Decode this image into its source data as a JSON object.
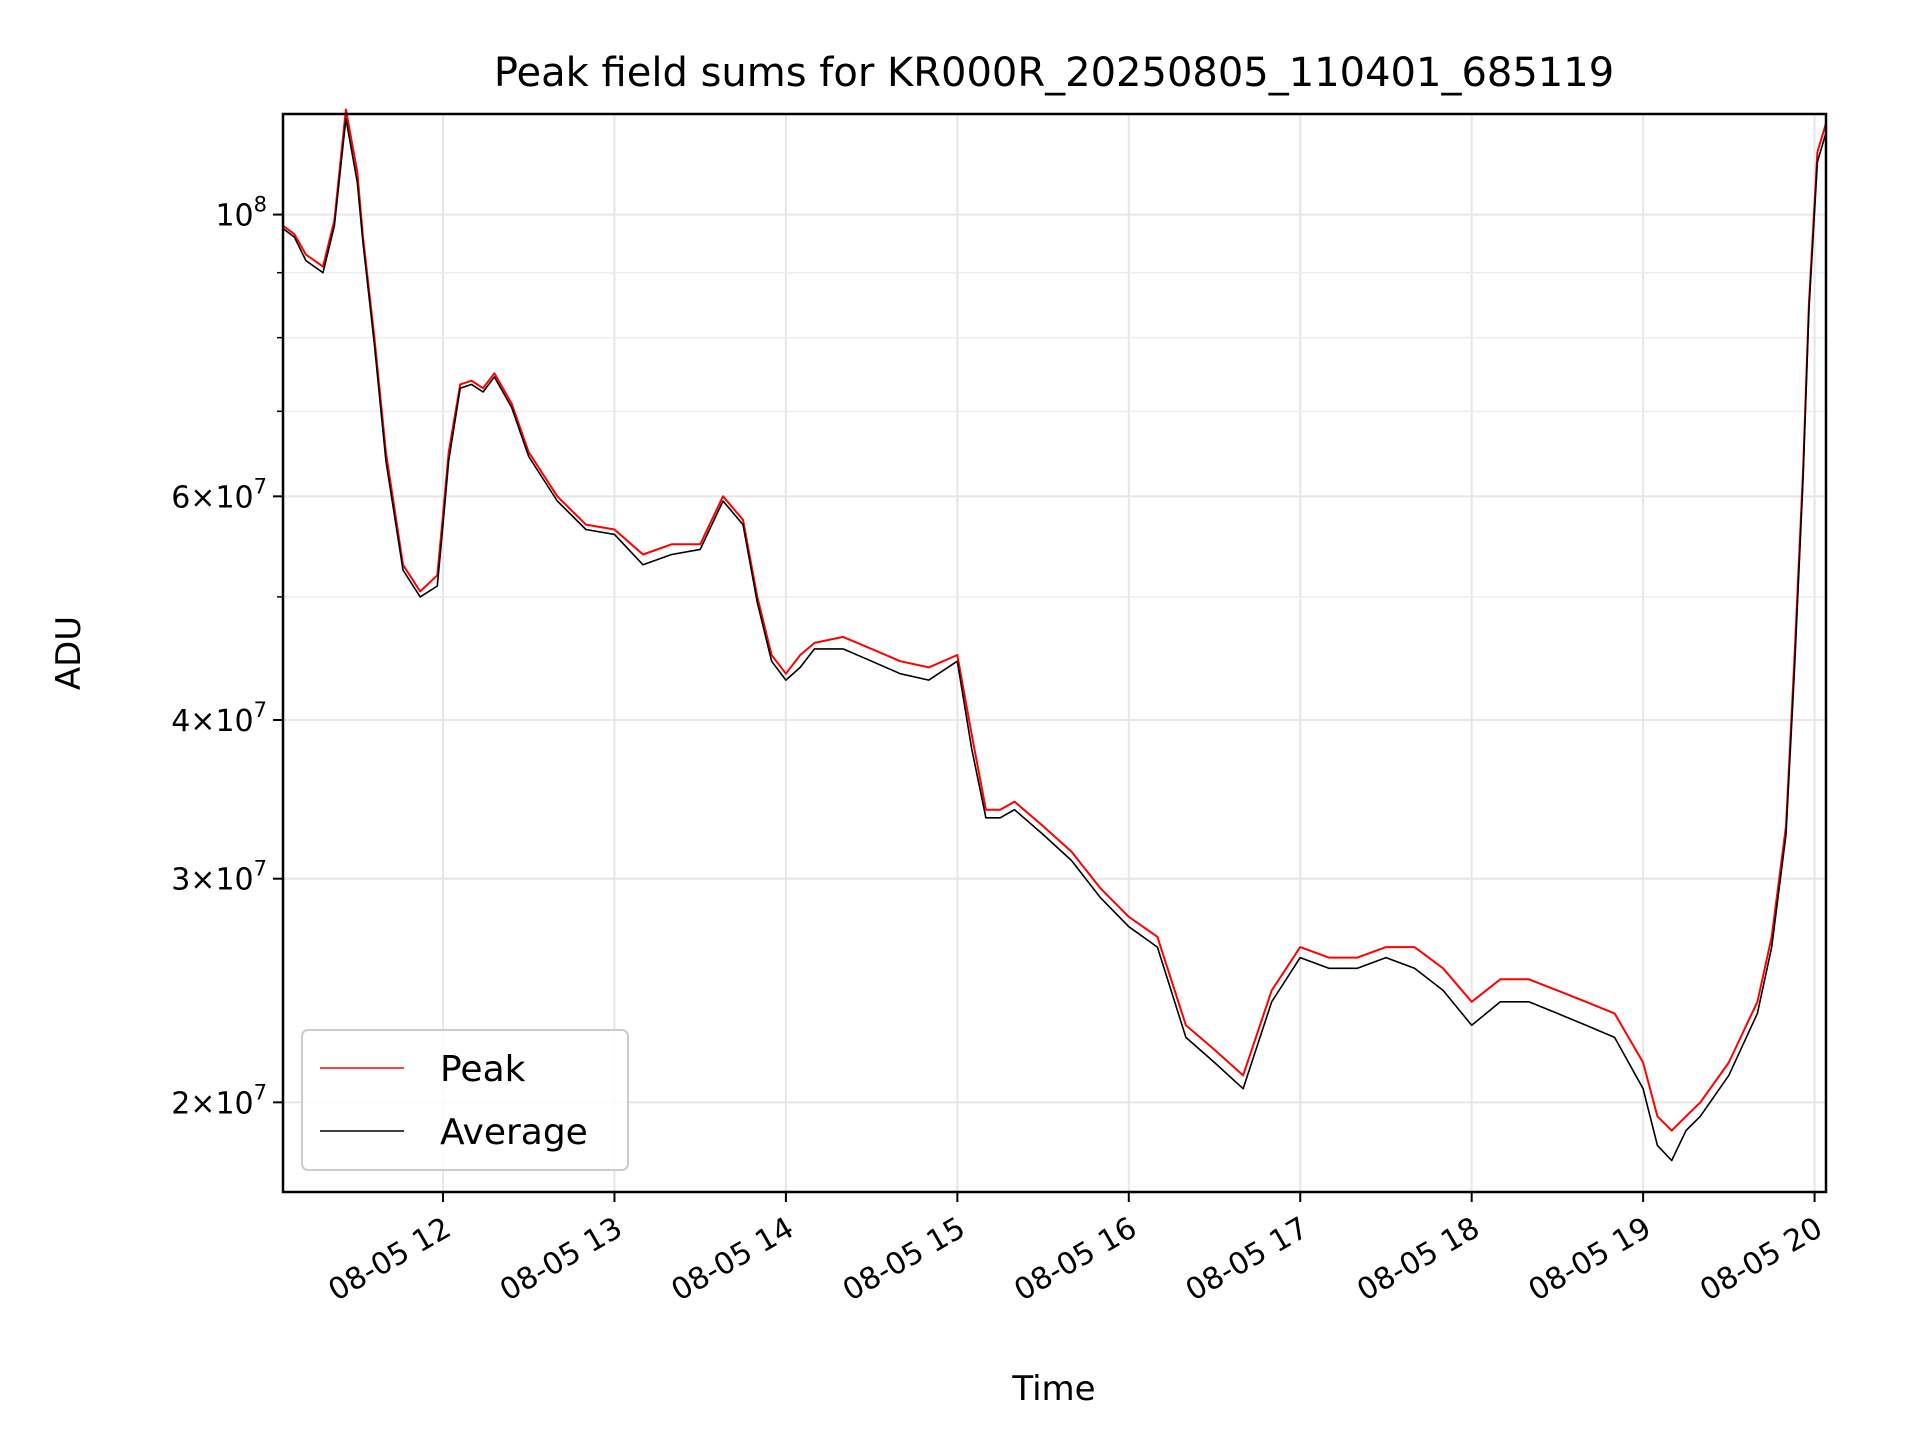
{
  "chart_data": {
    "type": "line",
    "title": "Peak field sums for KR000R_20250805_110401_685119",
    "xlabel": "Time",
    "ylabel": "ADU",
    "y_scale": "log",
    "ylim": [
      17000000,
      120000000
    ],
    "xlim": [
      "2025-08-05 11:04",
      "2025-08-05 20:04"
    ],
    "grid": true,
    "legend_location": "lower-left",
    "x_ticks": [
      {
        "time": "2025-08-05 12:00",
        "label": "08-05 12"
      },
      {
        "time": "2025-08-05 13:00",
        "label": "08-05 13"
      },
      {
        "time": "2025-08-05 14:00",
        "label": "08-05 14"
      },
      {
        "time": "2025-08-05 15:00",
        "label": "08-05 15"
      },
      {
        "time": "2025-08-05 16:00",
        "label": "08-05 16"
      },
      {
        "time": "2025-08-05 17:00",
        "label": "08-05 17"
      },
      {
        "time": "2025-08-05 18:00",
        "label": "08-05 18"
      },
      {
        "time": "2025-08-05 19:00",
        "label": "08-05 19"
      },
      {
        "time": "2025-08-05 20:00",
        "label": "08-05 20"
      }
    ],
    "y_ticks": [
      {
        "value": 100000000,
        "mant": "10",
        "exp": "8"
      },
      {
        "value": 60000000,
        "mant": "6×10",
        "exp": "7"
      },
      {
        "value": 40000000,
        "mant": "4×10",
        "exp": "7"
      },
      {
        "value": 30000000,
        "mant": "3×10",
        "exp": "7"
      },
      {
        "value": 20000000,
        "mant": "2×10",
        "exp": "7"
      }
    ],
    "y_minor_ticks": [
      90000000,
      80000000,
      70000000,
      50000000
    ],
    "series": [
      {
        "name": "Peak",
        "color": "#ff0000",
        "x": [
          "2025-08-05 11:04",
          "2025-08-05 11:08",
          "2025-08-05 11:12",
          "2025-08-05 11:18",
          "2025-08-05 11:22",
          "2025-08-05 11:26",
          "2025-08-05 11:30",
          "2025-08-05 11:32",
          "2025-08-05 11:36",
          "2025-08-05 11:40",
          "2025-08-05 11:46",
          "2025-08-05 11:52",
          "2025-08-05 11:58",
          "2025-08-05 12:00",
          "2025-08-05 12:02",
          "2025-08-05 12:06",
          "2025-08-05 12:10",
          "2025-08-05 12:14",
          "2025-08-05 12:18",
          "2025-08-05 12:24",
          "2025-08-05 12:30",
          "2025-08-05 12:40",
          "2025-08-05 12:50",
          "2025-08-05 13:00",
          "2025-08-05 13:10",
          "2025-08-05 13:20",
          "2025-08-05 13:30",
          "2025-08-05 13:38",
          "2025-08-05 13:45",
          "2025-08-05 13:50",
          "2025-08-05 13:55",
          "2025-08-05 14:00",
          "2025-08-05 14:05",
          "2025-08-05 14:10",
          "2025-08-05 14:20",
          "2025-08-05 14:30",
          "2025-08-05 14:40",
          "2025-08-05 14:50",
          "2025-08-05 15:00",
          "2025-08-05 15:05",
          "2025-08-05 15:10",
          "2025-08-05 15:15",
          "2025-08-05 15:20",
          "2025-08-05 15:30",
          "2025-08-05 15:40",
          "2025-08-05 15:50",
          "2025-08-05 16:00",
          "2025-08-05 16:10",
          "2025-08-05 16:20",
          "2025-08-05 16:30",
          "2025-08-05 16:40",
          "2025-08-05 16:50",
          "2025-08-05 17:00",
          "2025-08-05 17:10",
          "2025-08-05 17:20",
          "2025-08-05 17:30",
          "2025-08-05 17:40",
          "2025-08-05 17:50",
          "2025-08-05 18:00",
          "2025-08-05 18:10",
          "2025-08-05 18:20",
          "2025-08-05 18:30",
          "2025-08-05 18:40",
          "2025-08-05 18:50",
          "2025-08-05 19:00",
          "2025-08-05 19:05",
          "2025-08-05 19:10",
          "2025-08-05 19:15",
          "2025-08-05 19:20",
          "2025-08-05 19:30",
          "2025-08-05 19:40",
          "2025-08-05 19:45",
          "2025-08-05 19:50",
          "2025-08-05 19:53",
          "2025-08-05 19:56",
          "2025-08-05 19:58",
          "2025-08-05 20:01",
          "2025-08-05 20:04"
        ],
        "y": [
          98000000,
          96500000,
          93000000,
          91000000,
          99000000,
          121000000,
          108000000,
          96000000,
          80000000,
          65000000,
          53000000,
          50500000,
          52000000,
          58000000,
          65000000,
          73500000,
          74000000,
          73000000,
          75000000,
          71000000,
          65000000,
          60000000,
          57000000,
          56500000,
          54000000,
          55000000,
          55000000,
          60000000,
          57500000,
          50000000,
          45000000,
          43500000,
          45000000,
          46000000,
          46500000,
          45500000,
          44500000,
          44000000,
          45000000,
          39000000,
          34000000,
          34000000,
          34500000,
          33000000,
          31500000,
          29500000,
          28000000,
          27000000,
          23000000,
          22000000,
          21000000,
          24500000,
          26500000,
          26000000,
          26000000,
          26500000,
          26500000,
          25500000,
          24000000,
          25000000,
          25000000,
          24500000,
          24000000,
          23500000,
          21500000,
          19500000,
          19000000,
          19500000,
          20000000,
          21500000,
          24000000,
          27000000,
          33000000,
          45000000,
          63000000,
          85000000,
          112000000,
          118000000
        ]
      },
      {
        "name": "Average",
        "color": "#000000",
        "x": [
          "2025-08-05 11:04",
          "2025-08-05 11:08",
          "2025-08-05 11:12",
          "2025-08-05 11:18",
          "2025-08-05 11:22",
          "2025-08-05 11:26",
          "2025-08-05 11:30",
          "2025-08-05 11:32",
          "2025-08-05 11:36",
          "2025-08-05 11:40",
          "2025-08-05 11:46",
          "2025-08-05 11:52",
          "2025-08-05 11:58",
          "2025-08-05 12:00",
          "2025-08-05 12:02",
          "2025-08-05 12:06",
          "2025-08-05 12:10",
          "2025-08-05 12:14",
          "2025-08-05 12:18",
          "2025-08-05 12:24",
          "2025-08-05 12:30",
          "2025-08-05 12:40",
          "2025-08-05 12:50",
          "2025-08-05 13:00",
          "2025-08-05 13:10",
          "2025-08-05 13:20",
          "2025-08-05 13:30",
          "2025-08-05 13:38",
          "2025-08-05 13:45",
          "2025-08-05 13:50",
          "2025-08-05 13:55",
          "2025-08-05 14:00",
          "2025-08-05 14:05",
          "2025-08-05 14:10",
          "2025-08-05 14:20",
          "2025-08-05 14:30",
          "2025-08-05 14:40",
          "2025-08-05 14:50",
          "2025-08-05 15:00",
          "2025-08-05 15:05",
          "2025-08-05 15:10",
          "2025-08-05 15:15",
          "2025-08-05 15:20",
          "2025-08-05 15:30",
          "2025-08-05 15:40",
          "2025-08-05 15:50",
          "2025-08-05 16:00",
          "2025-08-05 16:10",
          "2025-08-05 16:20",
          "2025-08-05 16:30",
          "2025-08-05 16:40",
          "2025-08-05 16:50",
          "2025-08-05 17:00",
          "2025-08-05 17:10",
          "2025-08-05 17:20",
          "2025-08-05 17:30",
          "2025-08-05 17:40",
          "2025-08-05 17:50",
          "2025-08-05 18:00",
          "2025-08-05 18:10",
          "2025-08-05 18:20",
          "2025-08-05 18:30",
          "2025-08-05 18:40",
          "2025-08-05 18:50",
          "2025-08-05 19:00",
          "2025-08-05 19:05",
          "2025-08-05 19:10",
          "2025-08-05 19:15",
          "2025-08-05 19:20",
          "2025-08-05 19:30",
          "2025-08-05 19:40",
          "2025-08-05 19:45",
          "2025-08-05 19:50",
          "2025-08-05 19:53",
          "2025-08-05 19:56",
          "2025-08-05 19:58",
          "2025-08-05 20:01",
          "2025-08-05 20:04"
        ],
        "y": [
          97500000,
          96000000,
          92000000,
          90000000,
          98000000,
          119000000,
          106000000,
          95000000,
          79000000,
          64000000,
          52500000,
          50000000,
          51000000,
          57000000,
          64000000,
          73000000,
          73500000,
          72500000,
          74500000,
          70500000,
          64500000,
          59500000,
          56500000,
          56000000,
          53000000,
          54000000,
          54500000,
          59500000,
          57000000,
          49500000,
          44500000,
          43000000,
          44000000,
          45500000,
          45500000,
          44500000,
          43500000,
          43000000,
          44500000,
          38000000,
          33500000,
          33500000,
          34000000,
          32500000,
          31000000,
          29000000,
          27500000,
          26500000,
          22500000,
          21500000,
          20500000,
          24000000,
          26000000,
          25500000,
          25500000,
          26000000,
          25500000,
          24500000,
          23000000,
          24000000,
          24000000,
          23500000,
          23000000,
          22500000,
          20500000,
          18500000,
          18000000,
          19000000,
          19500000,
          21000000,
          23500000,
          26500000,
          32500000,
          44000000,
          62000000,
          84000000,
          110000000,
          116000000
        ]
      }
    ]
  }
}
